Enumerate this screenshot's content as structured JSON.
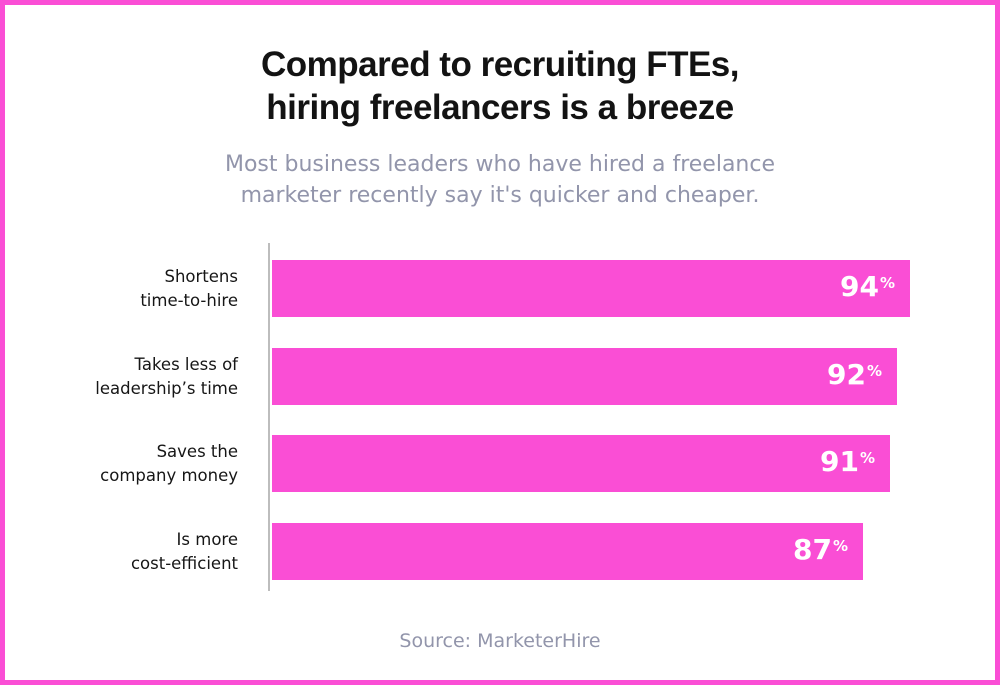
{
  "header": {
    "title": "Compared to recruiting FTEs,\nhiring freelancers is a breeze",
    "subtitle": "Most business leaders who have hired a freelance\nmarketer recently say it's quicker and cheaper."
  },
  "footer": {
    "source": "Source: MarketerHire"
  },
  "colors": {
    "bar": "#fa4ed5",
    "border": "#fa4ed5",
    "title": "#131313",
    "subtitle": "#9295ab",
    "axis": "#bdbdbd",
    "value_text": "#ffffff",
    "label_text": "#161616"
  },
  "chart_data": {
    "type": "bar",
    "orientation": "horizontal",
    "title": "Compared to recruiting FTEs, hiring freelancers is a breeze",
    "subtitle": "Most business leaders who have hired a freelance marketer recently say it's quicker and cheaper.",
    "source": "Source: MarketerHire",
    "categories": [
      "Shortens\ntime-to-hire",
      "Takes less of\nleadership’s time",
      "Saves the\ncompany money",
      "Is more\ncost-efficient"
    ],
    "values": [
      94,
      92,
      91,
      87
    ],
    "value_labels": [
      "94%",
      "92%",
      "91%",
      "87%"
    ],
    "value_suffix": "%",
    "xlim": [
      0,
      100
    ],
    "xlabel": "",
    "ylabel": "",
    "grid": false,
    "legend": false,
    "bar_color": "#fa4ed5"
  }
}
